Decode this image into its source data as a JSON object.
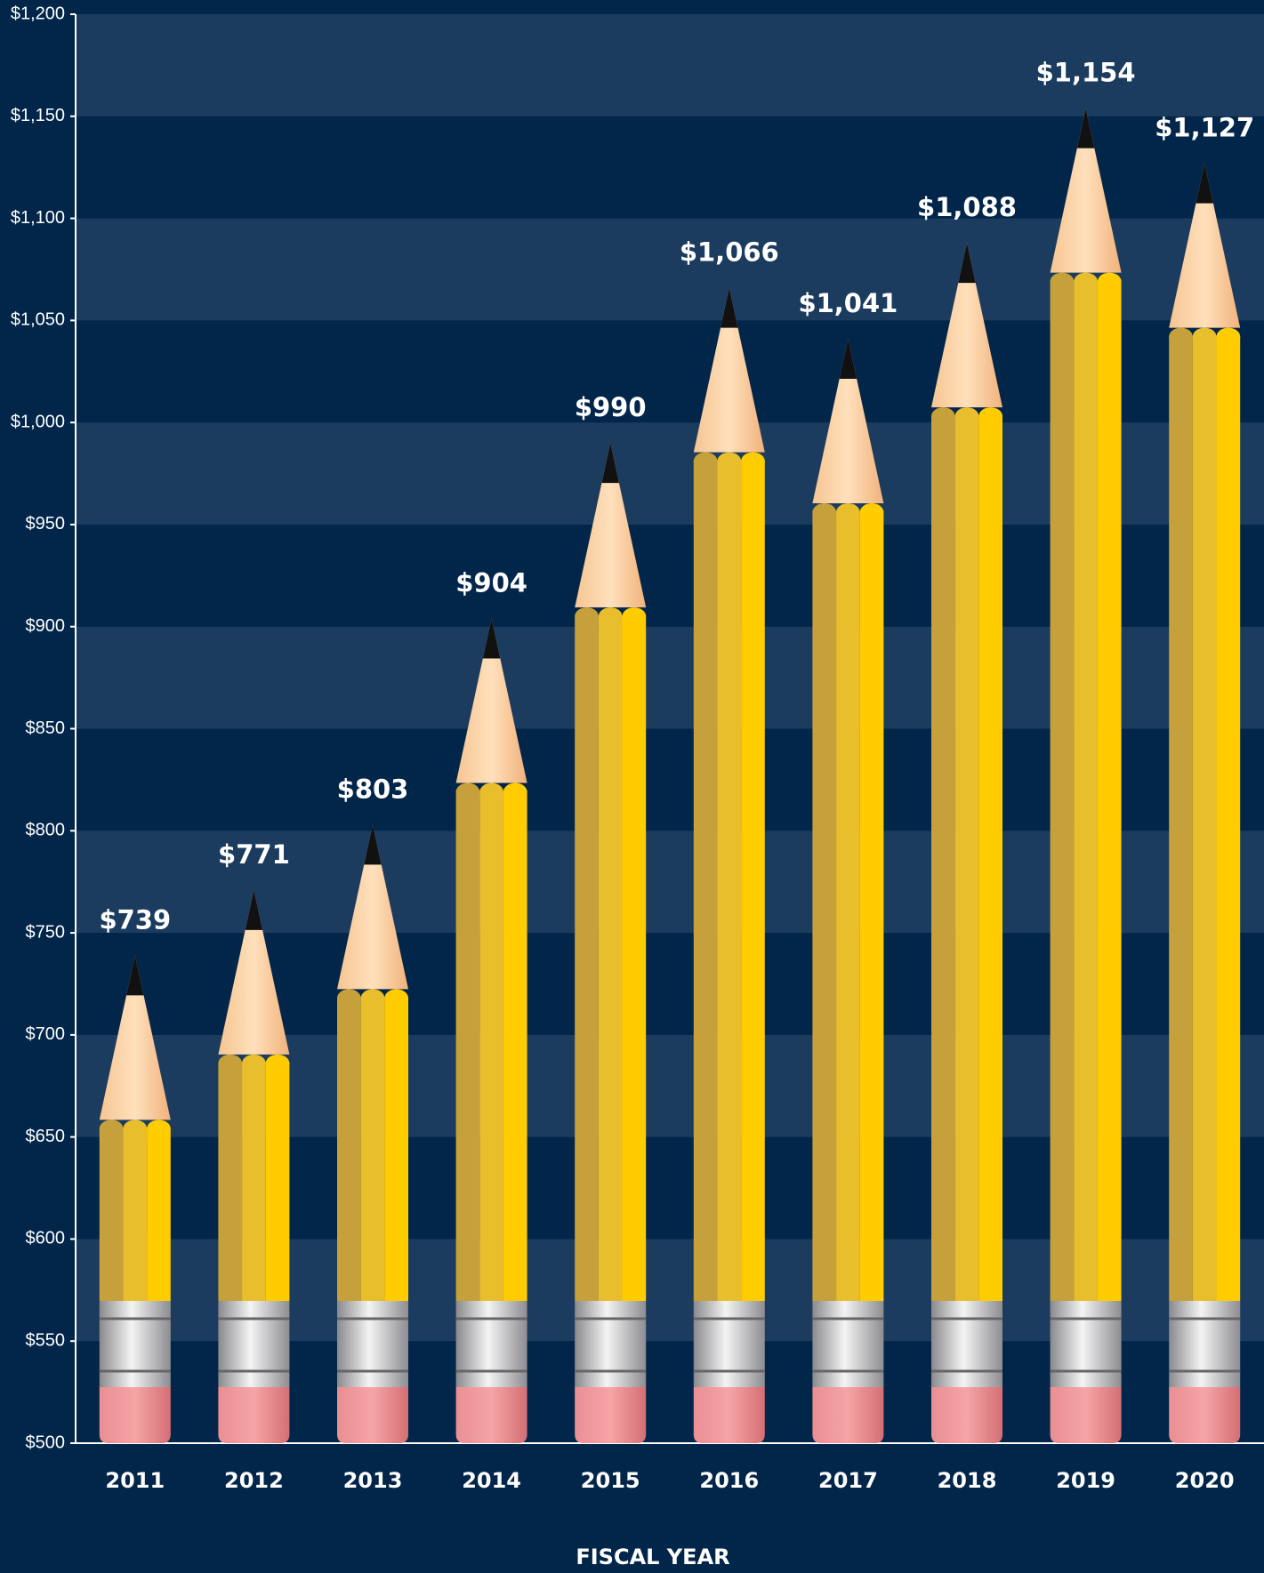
{
  "chart_data": {
    "type": "pencil-bar",
    "x_label": "FISCAL YEAR",
    "categories": [
      "2011",
      "2012",
      "2013",
      "2014",
      "2015",
      "2016",
      "2017",
      "2018",
      "2019",
      "2020"
    ],
    "values": [
      739,
      771,
      803,
      904,
      990,
      1066,
      1041,
      1088,
      1154,
      1127
    ],
    "value_labels": [
      "$739",
      "$771",
      "$803",
      "$904",
      "$990",
      "$1,066",
      "$1,041",
      "$1,088",
      "$1,154",
      "$1,127"
    ],
    "color": "#ffcc00",
    "ylim": [
      500,
      1200
    ],
    "yticks": [
      {
        "value": 500,
        "label": "$500"
      },
      {
        "value": 550,
        "label": "$550"
      },
      {
        "value": 600,
        "label": "$600"
      },
      {
        "value": 650,
        "label": "$650"
      },
      {
        "value": 700,
        "label": "$700"
      },
      {
        "value": 750,
        "label": "$750"
      },
      {
        "value": 800,
        "label": "$800"
      },
      {
        "value": 850,
        "label": "$850"
      },
      {
        "value": 900,
        "label": "$900"
      },
      {
        "value": 950,
        "label": "$950"
      },
      {
        "value": 1000,
        "label": "$1,000"
      },
      {
        "value": 1050,
        "label": "$1,050"
      },
      {
        "value": 1100,
        "label": "$1,100"
      },
      {
        "value": 1150,
        "label": "$1,150"
      },
      {
        "value": 1200,
        "label": "$1,200"
      }
    ],
    "grid": true
  }
}
